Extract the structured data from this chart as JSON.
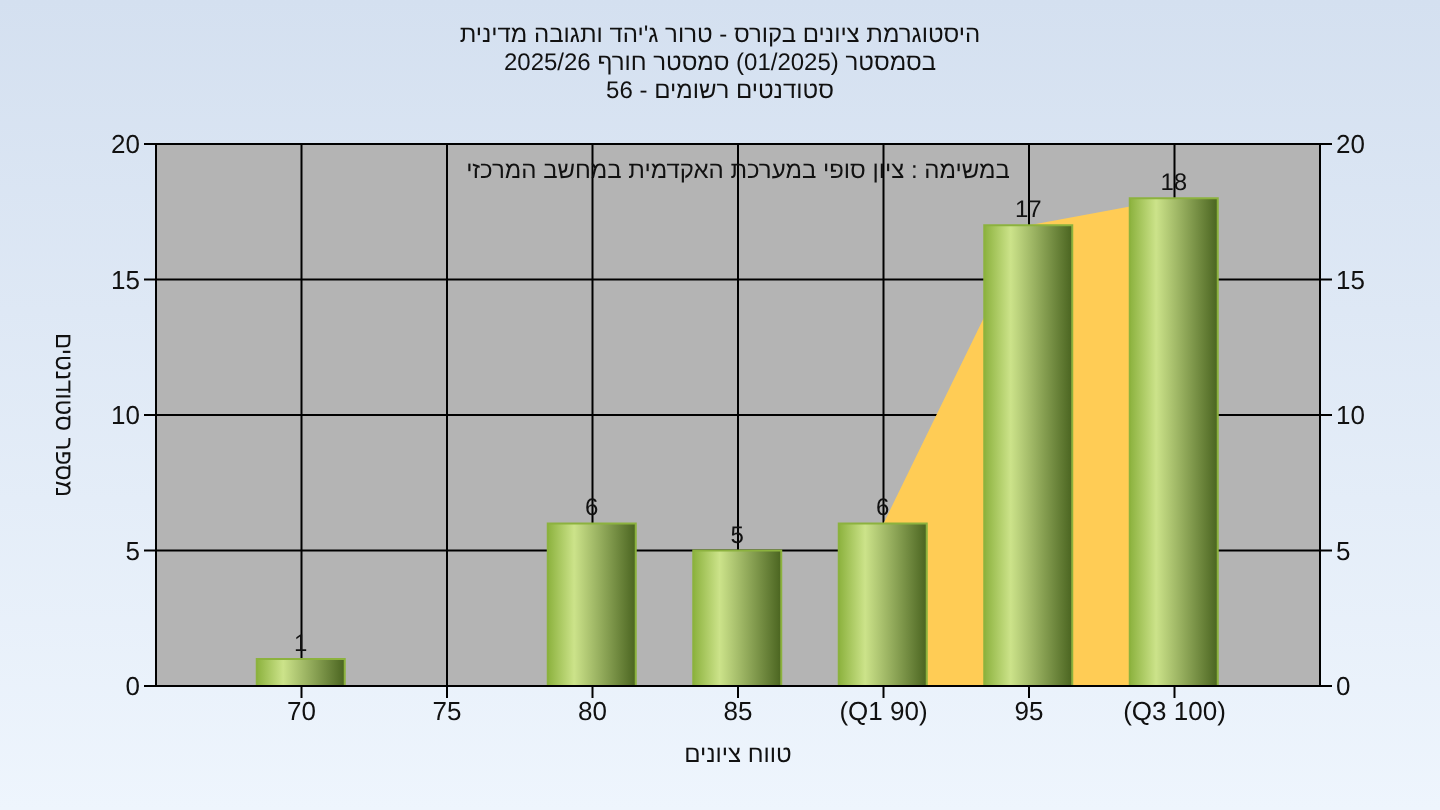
{
  "chart_data": {
    "type": "bar",
    "title": "היסטוגרמת ציונים בקורס - טרור ג'יהד ותגובה מדינית",
    "subtitle": "בסמסטר  (01/2025)  סמסטר חורף 2025/26\nסטודנטים רשומים - 56",
    "xlabel": "טווח ציונים",
    "ylabel": "מספר סטודנטים",
    "annotations": [
      "במשימה : ציון סופי במערכת האקדמית במחשב המרכזי"
    ],
    "categories": [
      "70",
      "75",
      "80",
      "85",
      "(Q1 90)",
      "95",
      "(Q3 100)"
    ],
    "series": [
      {
        "type": "area",
        "color": "#ffcc55",
        "values": [
          null,
          null,
          null,
          null,
          6,
          17,
          18
        ]
      },
      {
        "color": "#8cb23e",
        "values": [
          1,
          0,
          6,
          5,
          6,
          17,
          18
        ],
        "value_labels": [
          "1",
          null,
          "6",
          "5",
          "6",
          "17",
          "18"
        ]
      }
    ],
    "ylim": [
      0,
      20
    ],
    "yticks": [
      0,
      5,
      10,
      15,
      20
    ],
    "y2lim": [
      0,
      20
    ],
    "y2ticks": [
      0,
      5,
      10,
      15,
      20
    ],
    "grid": true
  }
}
